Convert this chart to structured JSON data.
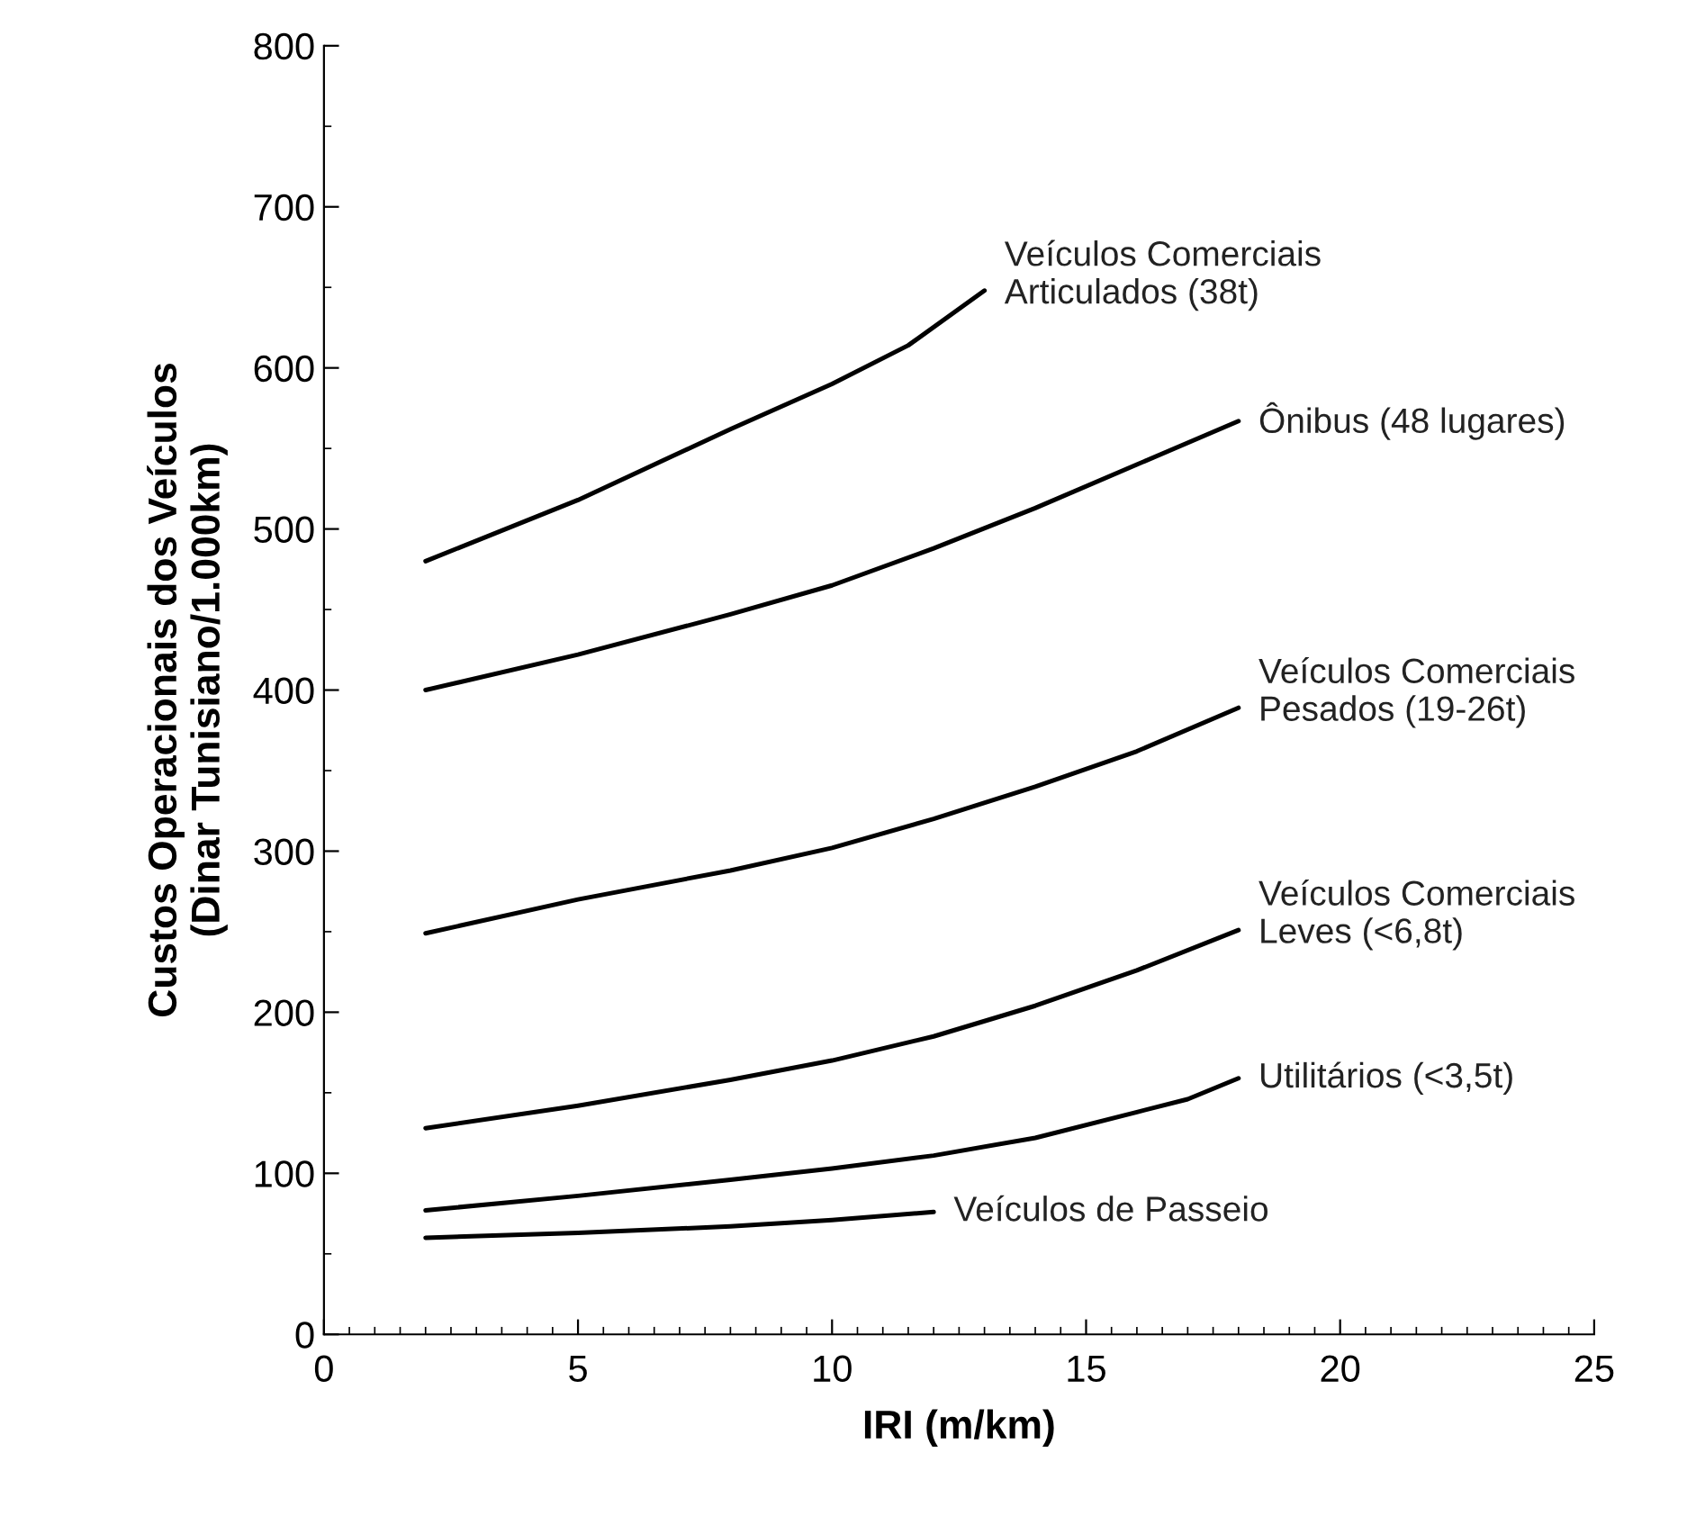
{
  "chart_data": {
    "type": "line",
    "xlabel": "IRI (m/km)",
    "ylabel": "Custos Operacionais dos Veículos\n(Dinar Tunisiano/1.000km)",
    "xlim": [
      0,
      25
    ],
    "xticks": [
      0,
      5,
      10,
      15,
      20,
      25
    ],
    "ylim": [
      0,
      800
    ],
    "yticks": [
      0,
      100,
      200,
      300,
      400,
      500,
      600,
      700,
      800
    ],
    "grid": false,
    "legend": false,
    "marker": "none",
    "line_style": "solid",
    "series": [
      {
        "name": "Veículos Comerciais\nArticulados (38t)",
        "color": "#000000",
        "x": [
          2,
          5,
          8,
          10,
          11.5,
          13
        ],
        "values": [
          480,
          518,
          562,
          590,
          614,
          648
        ]
      },
      {
        "name": "Ônibus (48 lugares)",
        "color": "#000000",
        "x": [
          2,
          5,
          8,
          10,
          12,
          14,
          16,
          18
        ],
        "values": [
          400,
          422,
          447,
          465,
          488,
          513,
          540,
          567
        ]
      },
      {
        "name": "Veículos Comerciais\nPesados (19-26t)",
        "color": "#000000",
        "x": [
          2,
          5,
          8,
          10,
          12,
          14,
          16,
          18
        ],
        "values": [
          249,
          270,
          288,
          302,
          320,
          340,
          362,
          389
        ]
      },
      {
        "name": "Veículos Comerciais\nLeves (<6,8t)",
        "color": "#000000",
        "x": [
          2,
          5,
          8,
          10,
          12,
          14,
          16,
          18
        ],
        "values": [
          128,
          142,
          158,
          170,
          185,
          204,
          226,
          251
        ]
      },
      {
        "name": "Utilitários (<3,5t)",
        "color": "#000000",
        "x": [
          2,
          5,
          8,
          10,
          12,
          14,
          16,
          17,
          18
        ],
        "values": [
          77,
          86,
          96,
          103,
          111,
          122,
          138,
          146,
          159
        ]
      },
      {
        "name": "Veículos de Passeio",
        "color": "#000000",
        "x": [
          2,
          5,
          8,
          10,
          12
        ],
        "values": [
          60,
          63,
          67,
          71,
          76
        ]
      }
    ]
  }
}
